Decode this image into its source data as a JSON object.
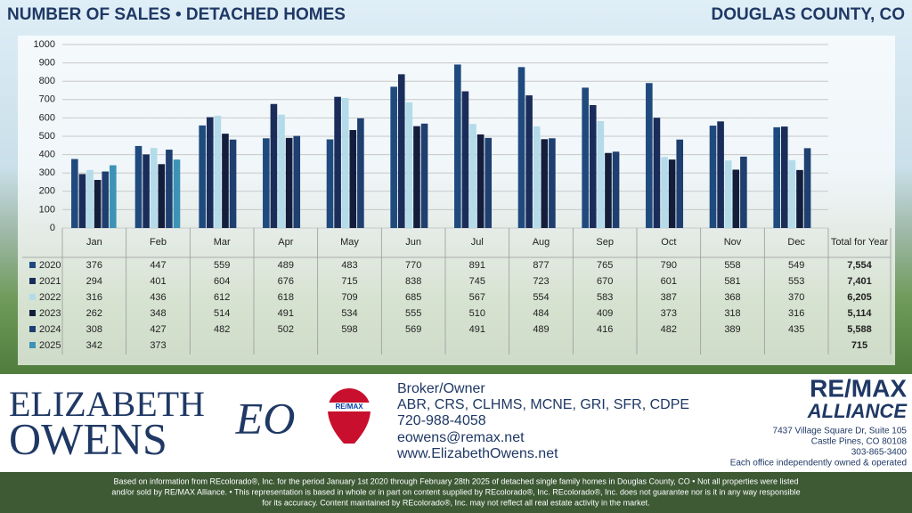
{
  "header": {
    "title": "NUMBER OF SALES • DETACHED HOMES",
    "region": "DOUGLAS COUNTY, CO"
  },
  "chart_data": {
    "type": "bar",
    "categories": [
      "Jan",
      "Feb",
      "Mar",
      "Apr",
      "May",
      "Jun",
      "Jul",
      "Aug",
      "Sep",
      "Oct",
      "Nov",
      "Dec"
    ],
    "total_header": "Total for Year",
    "ylim": [
      0,
      1000
    ],
    "yticks": [
      0,
      100,
      200,
      300,
      400,
      500,
      600,
      700,
      800,
      900,
      1000
    ],
    "grid": true,
    "series": [
      {
        "name": "2020",
        "color": "#1f4a7e",
        "values": [
          376,
          447,
          559,
          489,
          483,
          770,
          891,
          877,
          765,
          790,
          558,
          549
        ],
        "total": "7,554"
      },
      {
        "name": "2021",
        "color": "#1a2d5a",
        "values": [
          294,
          401,
          604,
          676,
          715,
          838,
          745,
          723,
          670,
          601,
          581,
          553
        ],
        "total": "7,401"
      },
      {
        "name": "2022",
        "color": "#b3dbea",
        "values": [
          316,
          436,
          612,
          618,
          709,
          685,
          567,
          554,
          583,
          387,
          368,
          370
        ],
        "total": "6,205"
      },
      {
        "name": "2023",
        "color": "#121e3c",
        "values": [
          262,
          348,
          514,
          491,
          534,
          555,
          510,
          484,
          409,
          373,
          318,
          316
        ],
        "total": "5,114"
      },
      {
        "name": "2024",
        "color": "#1e3f6f",
        "values": [
          308,
          427,
          482,
          502,
          598,
          569,
          491,
          489,
          416,
          482,
          389,
          435
        ],
        "total": "5,588"
      },
      {
        "name": "2025",
        "color": "#3c93b5",
        "values": [
          342,
          373,
          null,
          null,
          null,
          null,
          null,
          null,
          null,
          null,
          null,
          null
        ],
        "total": "715"
      }
    ]
  },
  "footer": {
    "name_first": "ELIZABETH",
    "name_last": "OWENS",
    "monogram": "EO",
    "balloon": "RE/MAX",
    "role": "Broker/Owner",
    "designations": "ABR, CRS, CLHMS, MCNE, GRI, SFR, CDPE",
    "phone": "720-988-4058",
    "email": "eowens@remax.net",
    "website": "www.ElizabethOwens.net",
    "brand": "RE/MAX",
    "brand_sub": "ALLIANCE",
    "address1": "7437 Village Square Dr, Suite 105",
    "address2": "Castle Pines, CO 80108",
    "office_phone": "303-865-3400",
    "office_note": "Each office independently owned & operated",
    "disclaimer1": "Based on information from REcolorado®, Inc. for the period January 1st 2020 through February 28th 2025 of detached single family homes in Douglas County, CO • Not all properties were listed",
    "disclaimer2": "and/or sold by RE/MAX Alliance. • This representation is based in whole or in part on content supplied by REcolorado®, Inc. REcolorado®, Inc. does not guarantee nor is it in any way responsible",
    "disclaimer3": "for its accuracy. Content maintained by REcolorado®, Inc. may not reflect all real estate activity in the market."
  }
}
